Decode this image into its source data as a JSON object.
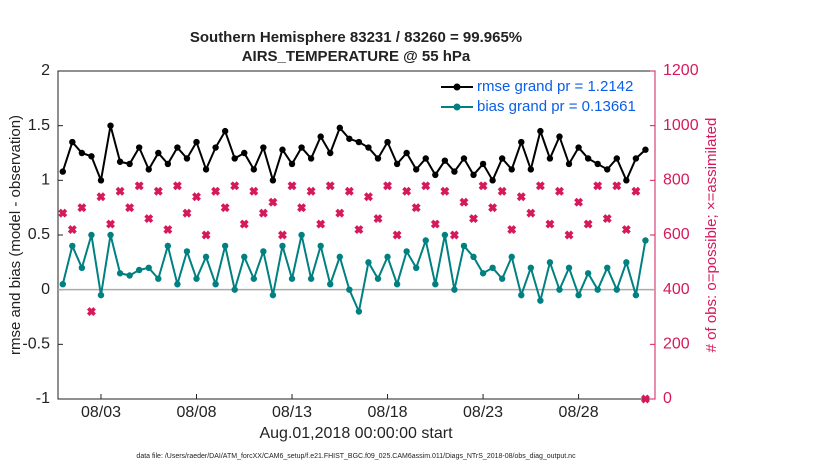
{
  "chart_data": {
    "type": "line",
    "title": "Southern Hemisphere 83231 / 83260 = 99.965%",
    "subtitle": "AIRS_TEMPERATURE @ 55 hPa",
    "x_label": "Aug.01,2018 00:00:00 start",
    "y_label": "rmse and bias (model - observation)",
    "y2_label": "# of obs: o=possible; ×=assimilated",
    "footnote": "data file: /Users/raeder/DAI/ATM_forcXX/CAM6_setup/f.e21.FHIST_BGC.f09_025.CAM6assim.011/Diags_NTrS_2018-08/obs_diag_output.nc",
    "x": [
      0,
      0.5,
      1,
      1.5,
      2,
      2.5,
      3,
      3.5,
      4,
      4.5,
      5,
      5.5,
      6,
      6.5,
      7,
      7.5,
      8,
      8.5,
      9,
      9.5,
      10,
      10.5,
      11,
      11.5,
      12,
      12.5,
      13,
      13.5,
      14,
      14.5,
      15,
      15.5,
      16,
      16.5,
      17,
      17.5,
      18,
      18.5,
      19,
      19.5,
      20,
      20.5,
      21,
      21.5,
      22,
      22.5,
      23,
      23.5,
      24,
      24.5,
      25,
      25.5,
      26,
      26.5,
      27,
      27.5,
      28,
      28.5,
      29,
      29.5,
      30,
      30.5
    ],
    "xlim": [
      -0.25,
      31
    ],
    "xticks": [
      {
        "value": 2,
        "label": "08/03"
      },
      {
        "value": 7,
        "label": "08/08"
      },
      {
        "value": 12,
        "label": "08/13"
      },
      {
        "value": 17,
        "label": "08/18"
      },
      {
        "value": 22,
        "label": "08/23"
      },
      {
        "value": 27,
        "label": "08/28"
      }
    ],
    "ylim": [
      -1,
      2
    ],
    "yticks": [
      -1,
      -0.5,
      0,
      0.5,
      1,
      1.5,
      2
    ],
    "y2lim": [
      0,
      1200
    ],
    "y2ticks": [
      0,
      200,
      400,
      600,
      800,
      1000,
      1200
    ],
    "legend": "northeast",
    "series": [
      {
        "name": "rmse grand pr = 1.2142",
        "color": "#000000",
        "values": [
          1.08,
          1.35,
          1.25,
          1.22,
          1.0,
          1.5,
          1.17,
          1.15,
          1.3,
          1.1,
          1.25,
          1.15,
          1.3,
          1.2,
          1.35,
          1.1,
          1.3,
          1.45,
          1.2,
          1.25,
          1.1,
          1.3,
          1.0,
          1.28,
          1.15,
          1.3,
          1.2,
          1.4,
          1.25,
          1.48,
          1.38,
          1.35,
          1.3,
          1.2,
          1.35,
          1.15,
          1.25,
          1.1,
          1.2,
          1.05,
          1.18,
          1.08,
          1.2,
          1.05,
          1.15,
          1.0,
          1.2,
          1.1,
          1.35,
          1.1,
          1.45,
          1.2,
          1.4,
          1.15,
          1.3,
          1.2,
          1.15,
          1.1,
          1.2,
          1.0,
          1.2,
          1.28
        ]
      },
      {
        "name": "bias grand pr = 0.13661",
        "color": "#008080",
        "values": [
          0.05,
          0.4,
          0.2,
          0.5,
          -0.05,
          0.5,
          0.15,
          0.13,
          0.18,
          0.2,
          0.1,
          0.4,
          0.05,
          0.35,
          0.1,
          0.3,
          0.05,
          0.4,
          0.0,
          0.3,
          0.1,
          0.35,
          -0.05,
          0.4,
          0.1,
          0.5,
          0.1,
          0.4,
          0.05,
          0.3,
          0.0,
          -0.2,
          0.25,
          0.1,
          0.3,
          0.05,
          0.35,
          0.2,
          0.45,
          0.05,
          0.5,
          0.0,
          0.4,
          0.3,
          0.15,
          0.2,
          0.1,
          0.3,
          -0.05,
          0.2,
          -0.1,
          0.25,
          0.0,
          0.2,
          -0.05,
          0.15,
          0.0,
          0.2,
          0.0,
          0.25,
          -0.05,
          0.45
        ]
      },
      {
        "color": "#d6195c",
        "axis": "y2",
        "values": [
          680,
          620,
          700,
          320,
          740,
          640,
          760,
          700,
          780,
          660,
          760,
          620,
          780,
          680,
          740,
          600,
          760,
          700,
          780,
          640,
          760,
          680,
          720,
          600,
          780,
          700,
          760,
          640,
          780,
          680,
          760,
          620,
          740,
          660,
          780,
          600,
          760,
          700,
          780,
          640,
          760,
          600,
          720,
          660,
          780,
          700,
          760,
          620,
          740,
          680,
          780,
          640,
          760,
          600,
          720,
          640,
          780,
          660,
          780,
          620,
          760,
          0
        ]
      }
    ]
  }
}
